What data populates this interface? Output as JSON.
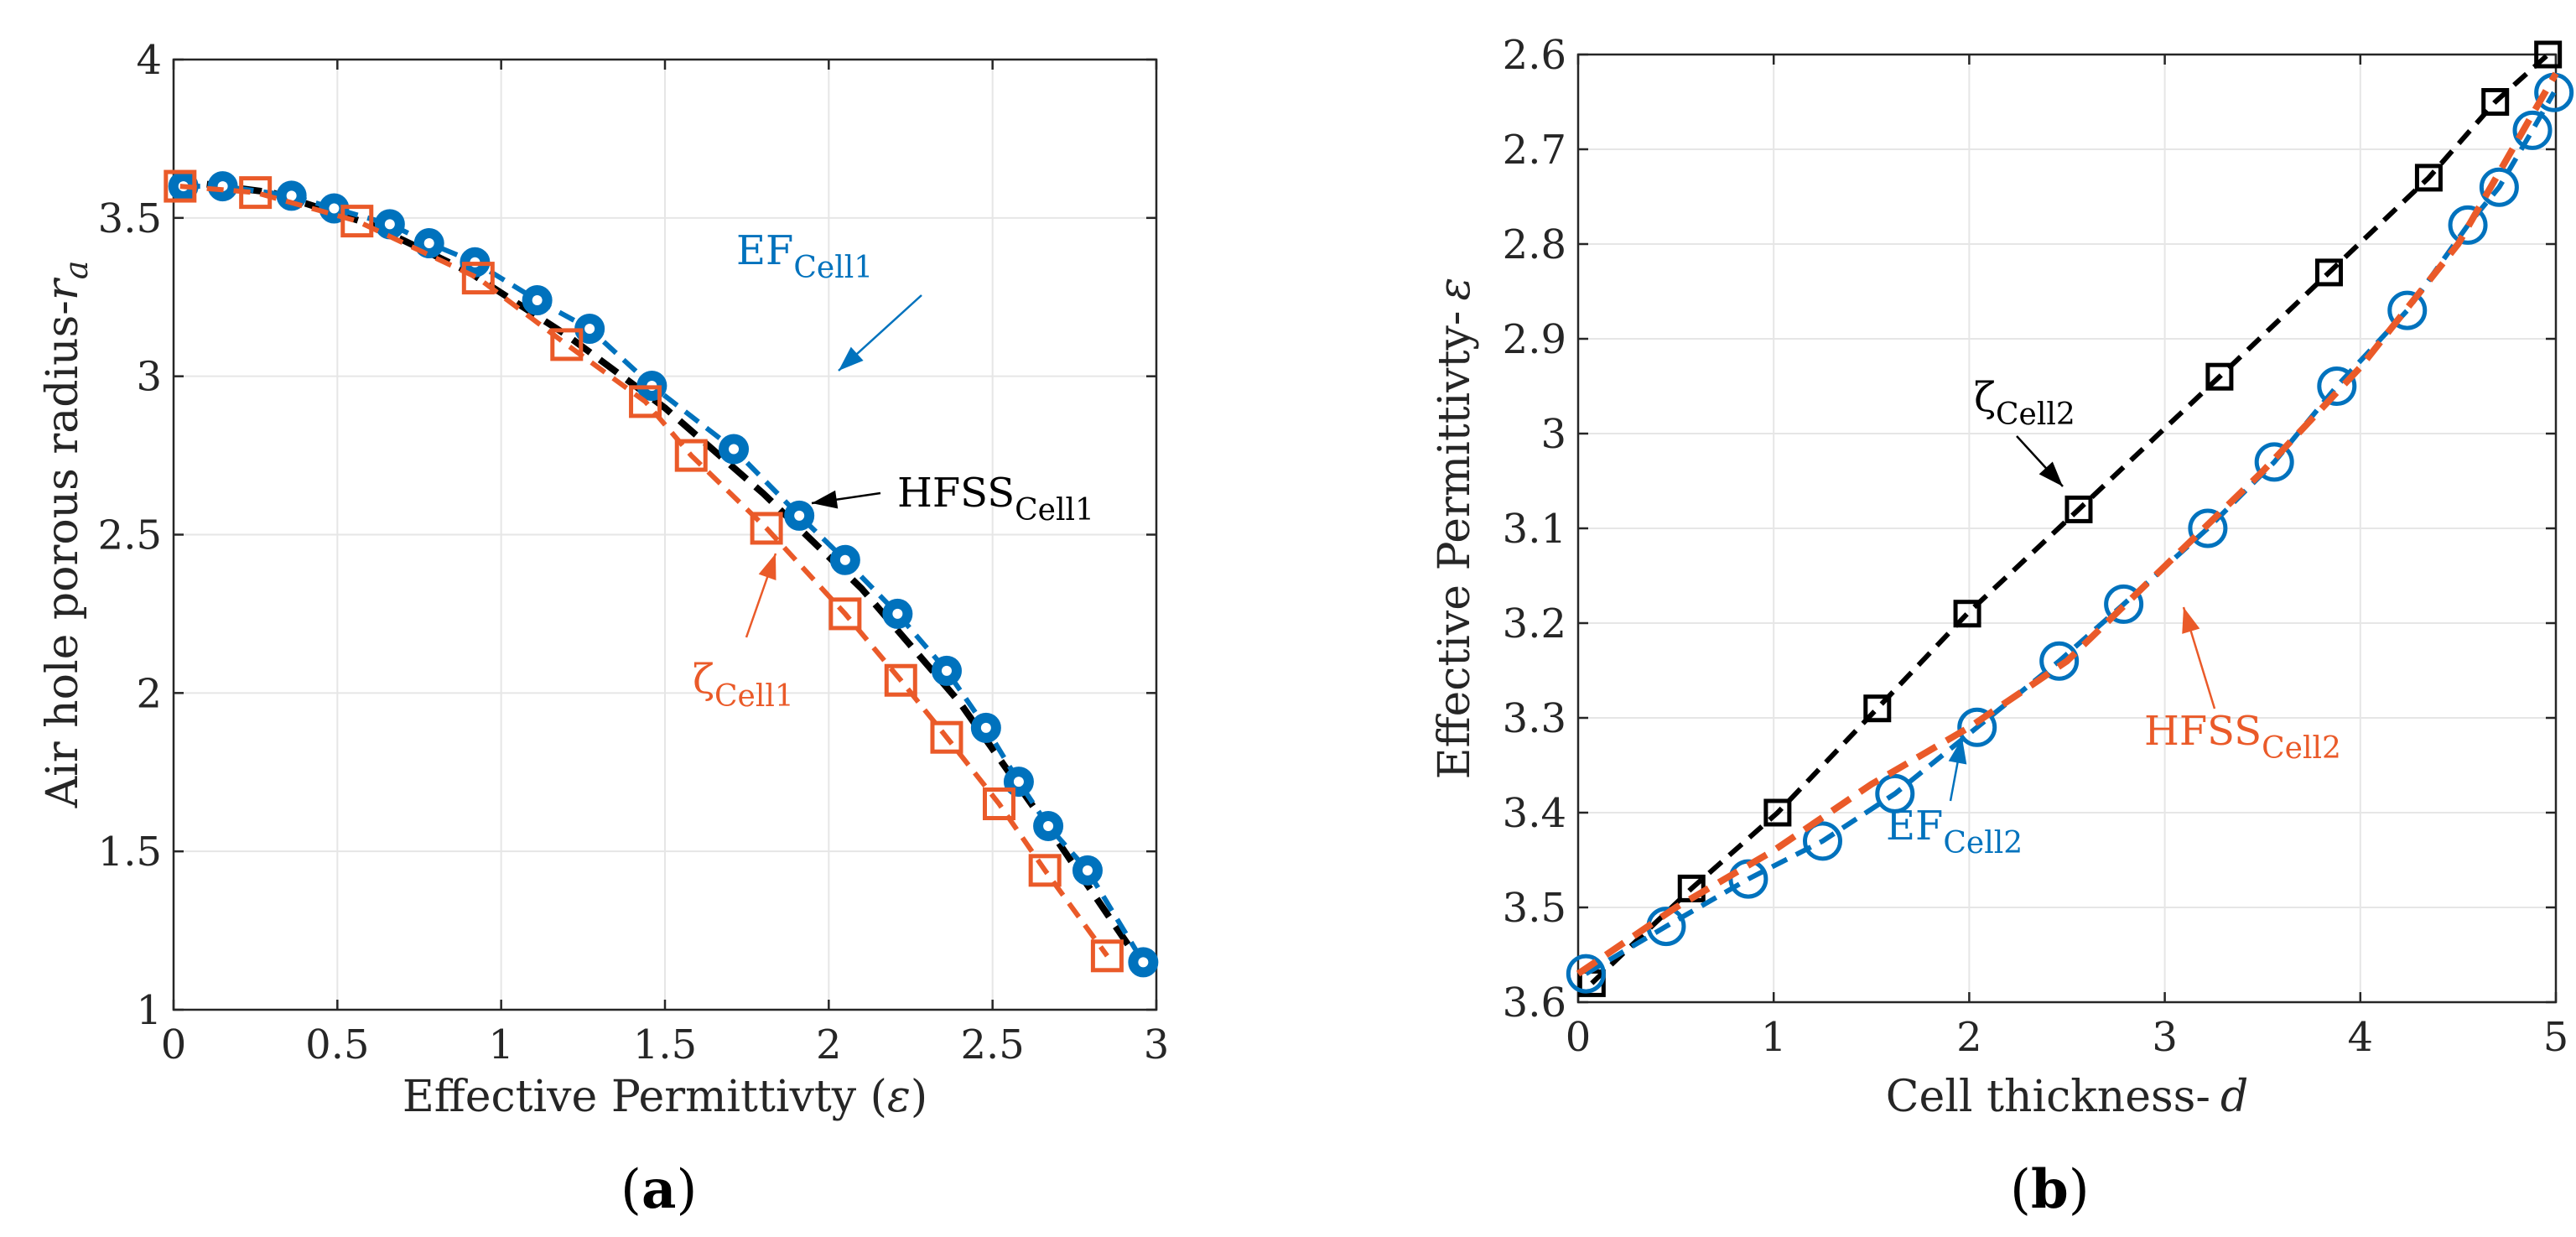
{
  "chart_data": [
    {
      "type": "line",
      "panel": "a",
      "caption_prefix": "(",
      "caption_letter": "a",
      "caption_suffix": ")",
      "xlabel_main": "Effective Permittivty (",
      "xlabel_sym": "ε",
      "xlabel_end": ")",
      "ylabel_main": "Air hole porous radius-",
      "ylabel_sym": "r",
      "ylabel_sub": "a",
      "xlim": [
        0,
        3
      ],
      "ylim": [
        1,
        4
      ],
      "y_reversed": false,
      "xticks": [
        0,
        0.5,
        1,
        1.5,
        2,
        2.5,
        3
      ],
      "xtick_labels": [
        "0",
        "0.5",
        "1",
        "1.5",
        "2",
        "2.5",
        "3"
      ],
      "yticks": [
        1,
        1.5,
        2,
        2.5,
        3,
        3.5,
        4
      ],
      "ytick_labels": [
        "1",
        "1.5",
        "2",
        "2.5",
        "3",
        "3.5",
        "4"
      ],
      "grid": true,
      "series": [
        {
          "name": "HFSS Cell1",
          "color": "#000000",
          "line": "dashed",
          "marker": "none",
          "x": [
            0,
            0.3,
            0.6,
            0.9,
            1.2,
            1.5,
            1.8,
            2.1,
            2.4,
            2.7,
            2.95
          ],
          "y": [
            3.62,
            3.58,
            3.48,
            3.33,
            3.13,
            2.9,
            2.63,
            2.33,
            1.97,
            1.53,
            1.15
          ]
        },
        {
          "name": "EF Cell1",
          "color": "#0072BD",
          "line": "dashed",
          "marker": "circle",
          "x": [
            0.03,
            0.15,
            0.36,
            0.49,
            0.66,
            0.78,
            0.92,
            1.11,
            1.27,
            1.46,
            1.71,
            1.91,
            2.05,
            2.21,
            2.36,
            2.48,
            2.58,
            2.67,
            2.79,
            2.96
          ],
          "y": [
            3.6,
            3.6,
            3.57,
            3.53,
            3.48,
            3.42,
            3.36,
            3.24,
            3.15,
            2.97,
            2.77,
            2.56,
            2.42,
            2.25,
            2.07,
            1.89,
            1.72,
            1.58,
            1.44,
            1.15
          ]
        },
        {
          "name": "ζ Cell1",
          "color": "#EA5A29",
          "line": "dashed",
          "marker": "square",
          "x": [
            0.02,
            0.25,
            0.56,
            0.93,
            1.2,
            1.44,
            1.58,
            1.81,
            2.05,
            2.22,
            2.36,
            2.52,
            2.66,
            2.85
          ],
          "y": [
            3.6,
            3.58,
            3.49,
            3.31,
            3.1,
            2.92,
            2.75,
            2.52,
            2.25,
            2.04,
            1.86,
            1.65,
            1.44,
            1.17
          ]
        }
      ],
      "annotations": [
        {
          "id": "ef",
          "base": "EF",
          "sub": "Cell1",
          "color": "#0072BD"
        },
        {
          "id": "hfss",
          "base": "HFSS",
          "sub": "Cell1",
          "color": "#000000"
        },
        {
          "id": "zeta",
          "base": "ζ",
          "sub": "Cell1",
          "color": "#EA5A29"
        }
      ]
    },
    {
      "type": "line",
      "panel": "b",
      "caption_prefix": "(",
      "caption_letter": "b",
      "caption_suffix": ")",
      "xlabel_main": "Cell thickness-",
      "xlabel_sym": "d",
      "xlabel_end": "",
      "ylabel_main": "Effective Permittivty-",
      "ylabel_sym": "ε",
      "ylabel_sub": "",
      "xlim": [
        0,
        5
      ],
      "ylim": [
        2.6,
        3.6
      ],
      "y_reversed": true,
      "xticks": [
        0,
        1,
        2,
        3,
        4,
        5
      ],
      "xtick_labels": [
        "0",
        "1",
        "2",
        "3",
        "4",
        "5"
      ],
      "yticks": [
        2.6,
        2.7,
        2.8,
        2.9,
        3,
        3.1,
        3.2,
        3.3,
        3.4,
        3.5,
        3.6
      ],
      "ytick_labels": [
        "2.6",
        "2.7",
        "2.8",
        "2.9",
        "3",
        "3.1",
        "3.2",
        "3.3",
        "3.4",
        "3.5",
        "3.6"
      ],
      "grid": true,
      "series": [
        {
          "name": "ζ Cell2",
          "color": "#000000",
          "line": "dashed",
          "marker": "square",
          "x": [
            0.07,
            0.58,
            1.02,
            1.53,
            1.99,
            2.56,
            3.28,
            3.84,
            4.35,
            4.69,
            4.96
          ],
          "y": [
            3.58,
            3.48,
            3.4,
            3.29,
            3.19,
            3.08,
            2.94,
            2.83,
            2.73,
            2.65,
            2.6
          ]
        },
        {
          "name": "EF Cell2",
          "color": "#0072BD",
          "line": "dashed",
          "marker": "circle",
          "x": [
            0.04,
            0.45,
            0.87,
            1.25,
            1.62,
            2.04,
            2.46,
            2.79,
            3.22,
            3.56,
            3.88,
            4.24,
            4.55,
            4.71,
            4.88,
            4.99
          ],
          "y": [
            3.57,
            3.52,
            3.47,
            3.43,
            3.38,
            3.31,
            3.24,
            3.18,
            3.1,
            3.03,
            2.95,
            2.87,
            2.78,
            2.74,
            2.68,
            2.64
          ]
        },
        {
          "name": "HFSS Cell2",
          "color": "#EA5A29",
          "line": "dashed",
          "marker": "none",
          "x": [
            0,
            0.5,
            1,
            1.5,
            2,
            2.5,
            3,
            3.5,
            4,
            4.5,
            5
          ],
          "y": [
            3.57,
            3.5,
            3.44,
            3.37,
            3.31,
            3.24,
            3.14,
            3.04,
            2.93,
            2.8,
            2.62
          ]
        }
      ],
      "annotations": [
        {
          "id": "zeta",
          "base": "ζ",
          "sub": "Cell2",
          "color": "#000000"
        },
        {
          "id": "hfss",
          "base": "HFSS",
          "sub": "Cell2",
          "color": "#EA5A29"
        },
        {
          "id": "ef",
          "base": "EF",
          "sub": "Cell2",
          "color": "#0072BD"
        }
      ]
    }
  ]
}
